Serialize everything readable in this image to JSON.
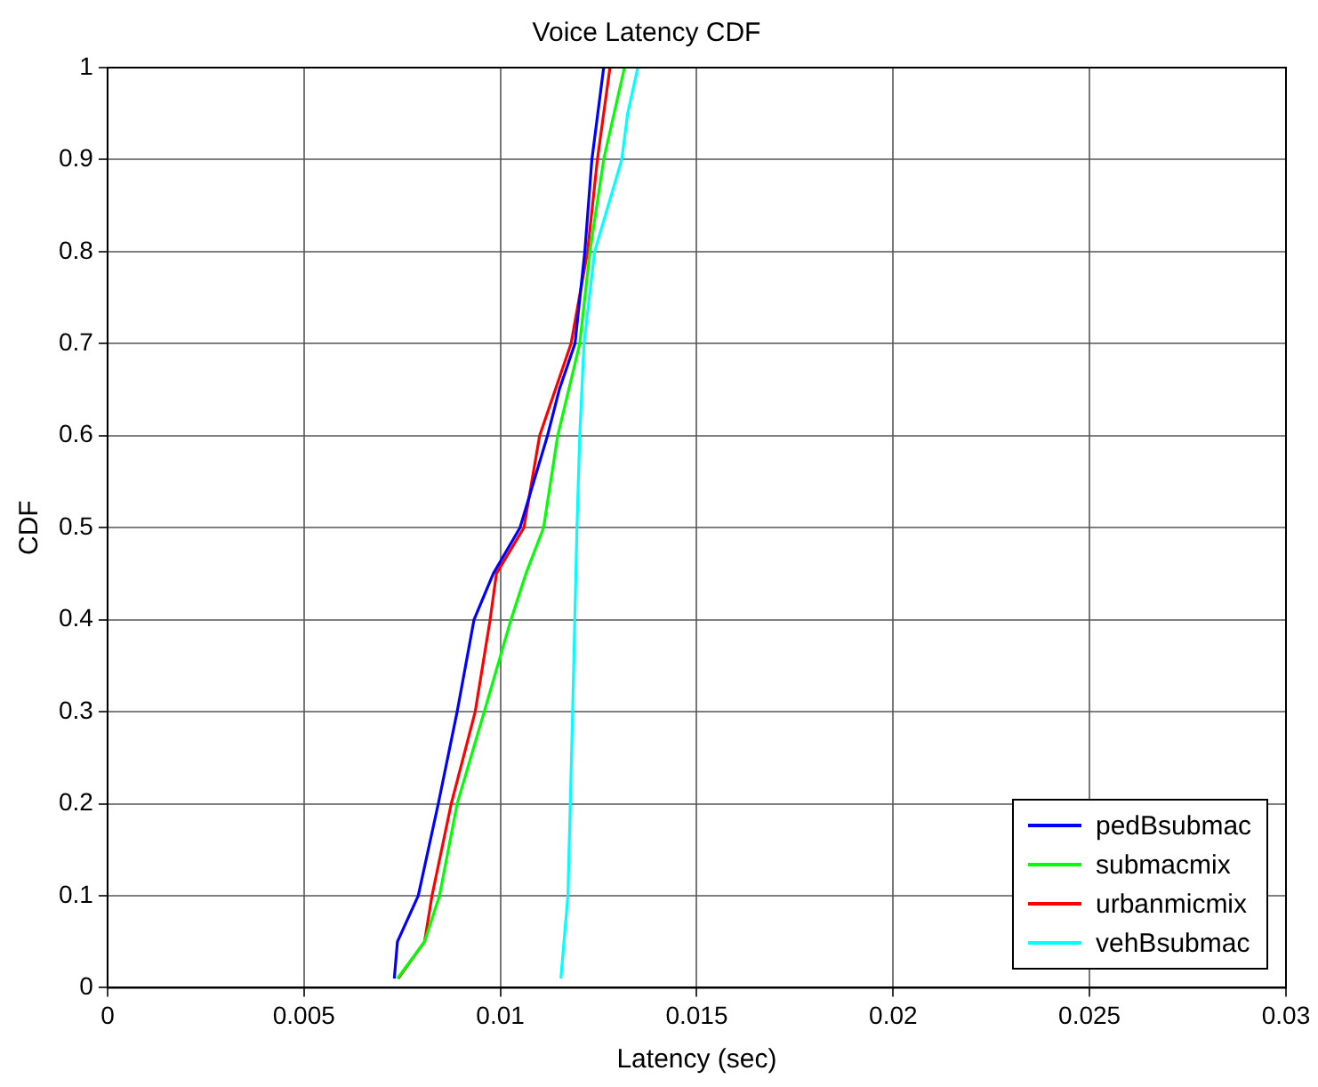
{
  "chart_data": {
    "type": "line",
    "title": "Voice Latency CDF",
    "xlabel": "Latency (sec)",
    "ylabel": "CDF",
    "xlim": [
      0,
      0.03
    ],
    "xticks": [
      0,
      0.005,
      0.01,
      0.015,
      0.02,
      0.025,
      0.03
    ],
    "ylim": [
      0,
      1
    ],
    "yticks": [
      0,
      0.1,
      0.2,
      0.3,
      0.4,
      0.5,
      0.6,
      0.7,
      0.8,
      0.9,
      1
    ],
    "grid": true,
    "legend": "bottom right",
    "marker": "none",
    "line_style": "solid",
    "series": [
      {
        "name": "pedBsubmac",
        "color": "#0000ff",
        "x": [
          0.0073,
          0.00738,
          0.00791,
          0.00842,
          0.0089,
          0.00933,
          0.00982,
          0.0105,
          0.0112,
          0.0115,
          0.0119,
          0.01215,
          0.01233,
          0.01263
        ],
        "values": [
          0.01,
          0.05,
          0.1,
          0.2,
          0.3,
          0.4,
          0.45,
          0.5,
          0.6,
          0.65,
          0.7,
          0.8,
          0.9,
          1
        ]
      },
      {
        "name": "submacmix",
        "color": "#00ff00",
        "x": [
          0.00738,
          0.00807,
          0.00845,
          0.0089,
          0.00959,
          0.01027,
          0.01065,
          0.0111,
          0.01146,
          0.01202,
          0.01228,
          0.01263,
          0.01316
        ],
        "values": [
          0.01,
          0.05,
          0.1,
          0.2,
          0.3,
          0.4,
          0.45,
          0.5,
          0.6,
          0.7,
          0.8,
          0.9,
          1
        ]
      },
      {
        "name": "urbanmicmix",
        "color": "#ff0000",
        "x": [
          0.0074,
          0.00807,
          0.00826,
          0.00875,
          0.00936,
          0.00974,
          0.0099,
          0.0106,
          0.011,
          0.0118,
          0.01222,
          0.01247,
          0.01279
        ],
        "values": [
          0.01,
          0.05,
          0.1,
          0.2,
          0.3,
          0.4,
          0.45,
          0.5,
          0.6,
          0.7,
          0.8,
          0.9,
          1
        ]
      },
      {
        "name": "vehBsubmac",
        "color": "#00ffff",
        "x": [
          0.01154,
          0.01172,
          0.01184,
          0.01195,
          0.01202,
          0.01213,
          0.0124,
          0.01309,
          0.01324,
          0.0135
        ],
        "values": [
          0.01,
          0.1,
          0.3,
          0.5,
          0.6,
          0.7,
          0.8,
          0.9,
          0.95,
          1
        ]
      }
    ]
  }
}
